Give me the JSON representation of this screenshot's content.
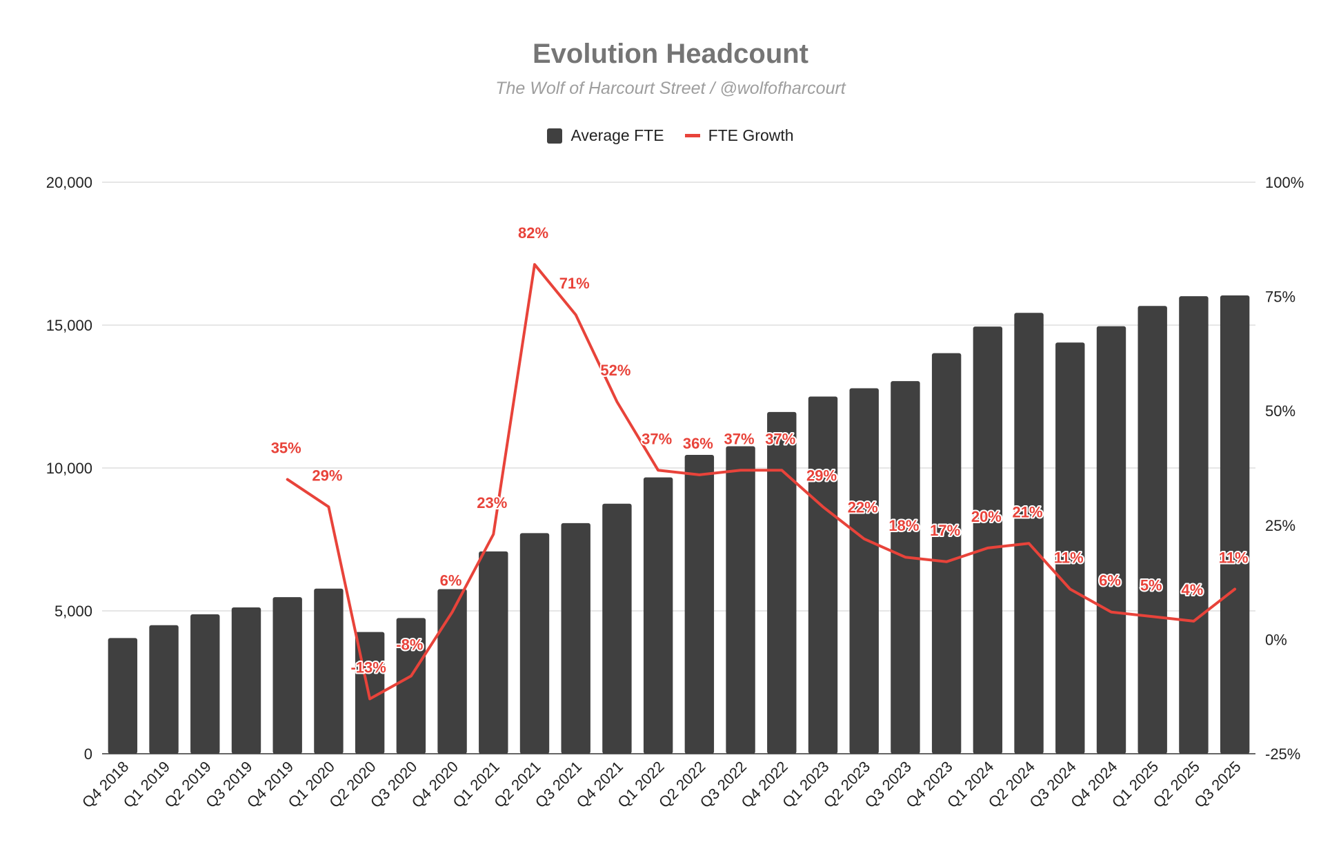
{
  "chart_data": {
    "type": "bar+line",
    "title": "Evolution Headcount",
    "subtitle": "The Wolf of Harcourt Street / @wolfofharcourt",
    "categories": [
      "Q4 2018",
      "Q1 2019",
      "Q2 2019",
      "Q3 2019",
      "Q4 2019",
      "Q1 2020",
      "Q2 2020",
      "Q3 2020",
      "Q4 2020",
      "Q1 2021",
      "Q2 2021",
      "Q3 2021",
      "Q4 2021",
      "Q1 2022",
      "Q2 2022",
      "Q3 2022",
      "Q4 2022",
      "Q1 2023",
      "Q2 2023",
      "Q3 2023",
      "Q4 2023",
      "Q1 2024",
      "Q2 2024",
      "Q3 2024",
      "Q4 2024",
      "Q1 2025",
      "Q2 2025",
      "Q3 2025"
    ],
    "series": [
      {
        "name": "Average FTE",
        "type": "bar",
        "axis": "left",
        "values": [
          4050,
          4500,
          4880,
          5120,
          5480,
          5780,
          4260,
          4750,
          5760,
          7080,
          7720,
          8070,
          8750,
          9670,
          10460,
          10760,
          11960,
          12500,
          12790,
          13040,
          14020,
          14950,
          15430,
          14390,
          14960,
          15670,
          16010,
          16040
        ]
      },
      {
        "name": "FTE Growth",
        "type": "line",
        "axis": "right",
        "values": [
          null,
          null,
          null,
          null,
          35,
          29,
          -13,
          -8,
          6,
          23,
          82,
          71,
          52,
          37,
          36,
          37,
          37,
          29,
          22,
          18,
          17,
          20,
          21,
          11,
          6,
          5,
          4,
          11
        ],
        "labels": [
          "",
          "",
          "",
          "",
          "35%",
          "29%",
          "-13%",
          "-8%",
          "6%",
          "23%",
          "82%",
          "71%",
          "52%",
          "37%",
          "36%",
          "37%",
          "37%",
          "29%",
          "22%",
          "18%",
          "17%",
          "20%",
          "21%",
          "11%",
          "6%",
          "5%",
          "4%",
          "11%"
        ]
      }
    ],
    "left_axis": {
      "min": 0,
      "max": 20000,
      "ticks": [
        0,
        5000,
        10000,
        15000,
        20000
      ],
      "tick_labels": [
        "0",
        "5,000",
        "10,000",
        "15,000",
        "20,000"
      ]
    },
    "right_axis": {
      "min": -25,
      "max": 100,
      "ticks": [
        -25,
        0,
        25,
        50,
        75,
        100
      ],
      "tick_labels": [
        "-25%",
        "0%",
        "25%",
        "50%",
        "75%",
        "100%"
      ]
    },
    "legend": {
      "position": "top",
      "items": [
        "Average FTE",
        "FTE Growth"
      ]
    },
    "grid": true,
    "colors": {
      "bar": "#404040",
      "line": "#e8433a",
      "grid": "#cccccc",
      "title": "#757575",
      "subtitle": "#9e9e9e"
    }
  }
}
